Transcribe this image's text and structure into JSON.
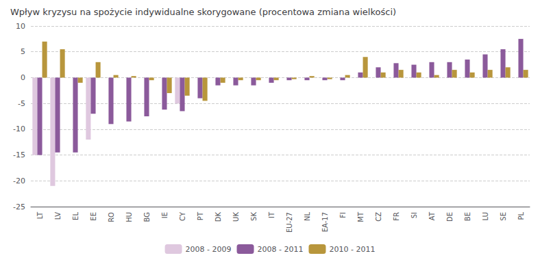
{
  "chart_data": {
    "type": "bar",
    "title": "Wpływ kryzysu na spożycie indywidualne skorygowane (procentowa zmiana wielkości)",
    "categories": [
      "LT",
      "LV",
      "EL",
      "EE",
      "RO",
      "HU",
      "BG",
      "IE",
      "CY",
      "PT",
      "DK",
      "UK",
      "SK",
      "IT",
      "EU-27",
      "NL",
      "EA-17",
      "FI",
      "MT",
      "CZ",
      "FR",
      "SI",
      "AT",
      "DE",
      "BE",
      "LU",
      "SE",
      "PL"
    ],
    "series": [
      {
        "name": "2008 - 2009",
        "color": "#dfc8df",
        "values": [
          -15.0,
          -21.0,
          null,
          -12.0,
          null,
          null,
          null,
          null,
          -5.0,
          null,
          null,
          null,
          null,
          null,
          null,
          null,
          null,
          null,
          null,
          null,
          null,
          null,
          null,
          null,
          null,
          null,
          null,
          null
        ]
      },
      {
        "name": "2008 - 2011",
        "color": "#8b5a9b",
        "values": [
          -15.0,
          -14.5,
          -14.5,
          -7.0,
          -9.0,
          -8.5,
          -7.5,
          -6.2,
          -6.5,
          -4.0,
          -1.5,
          -1.5,
          -1.5,
          -1.0,
          -0.5,
          -0.5,
          -0.5,
          -0.5,
          1.0,
          2.0,
          2.8,
          2.5,
          3.0,
          3.0,
          3.5,
          4.5,
          5.5,
          7.5
        ]
      },
      {
        "name": "2010 - 2011",
        "color": "#b8963c",
        "values": [
          7.0,
          5.5,
          -1.0,
          3.0,
          0.5,
          0.3,
          -0.5,
          -3.0,
          -3.5,
          -4.5,
          -1.0,
          -0.5,
          -0.5,
          -0.5,
          -0.3,
          0.3,
          -0.3,
          0.5,
          4.0,
          1.0,
          1.5,
          1.0,
          0.5,
          1.5,
          1.0,
          1.5,
          2.0,
          1.5
        ]
      }
    ],
    "ylim": [
      -25,
      10
    ],
    "yticks": [
      -25,
      -20,
      -15,
      -10,
      -5,
      0,
      5,
      10
    ],
    "grid": true,
    "legend": "bottom"
  }
}
